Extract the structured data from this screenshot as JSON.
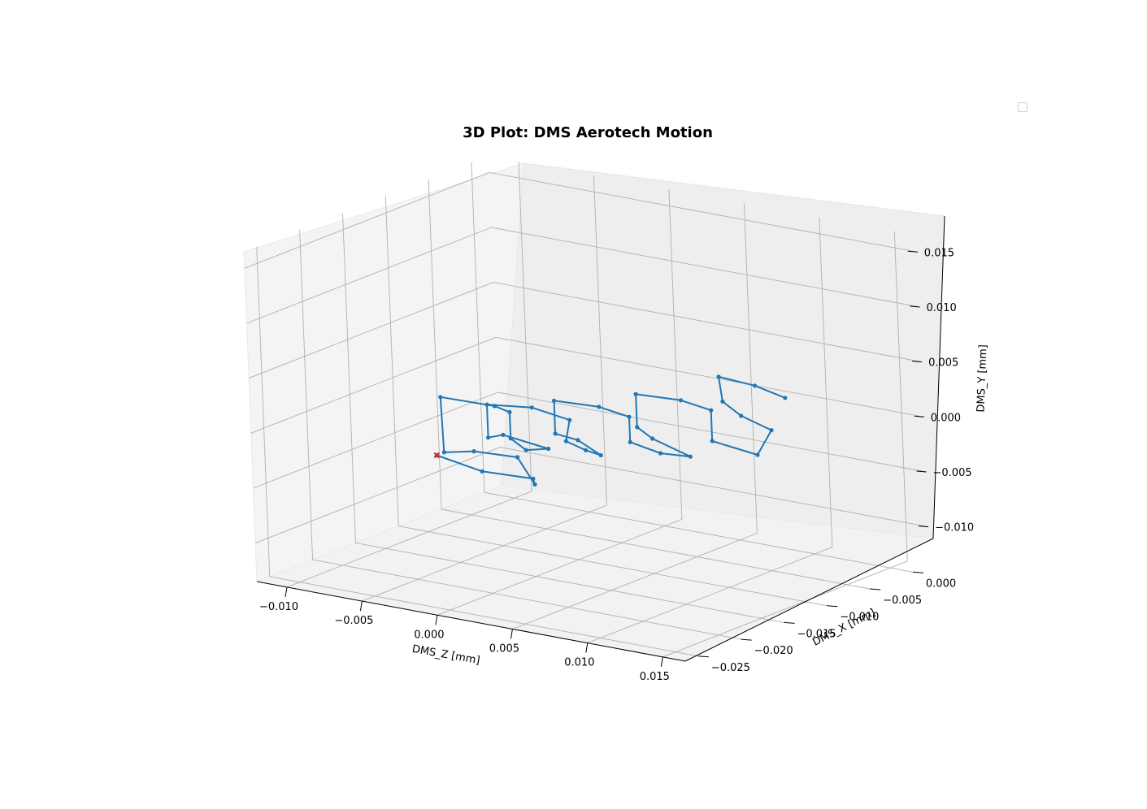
{
  "chart_data": {
    "type": "line3d",
    "title": "3D Plot: DMS Aerotech Motion",
    "axes": {
      "x": {
        "label": "DMS_Z [mm]",
        "ticks": [
          "−0.010",
          "−0.005",
          "0.000",
          "0.005",
          "0.010",
          "0.015"
        ],
        "tick_values": [
          -0.01,
          -0.005,
          0.0,
          0.005,
          0.01,
          0.015
        ]
      },
      "y": {
        "label": "DMS_X [mm]",
        "ticks": [
          "−0.025",
          "−0.020",
          "−0.015",
          "−0.010",
          "−0.005",
          "0.000"
        ],
        "tick_values": [
          -0.025,
          -0.02,
          -0.015,
          -0.01,
          -0.005,
          0.0
        ]
      },
      "z": {
        "label": "DMS_Y [mm]",
        "ticks": [
          "−0.010",
          "−0.005",
          "0.000",
          "0.005",
          "0.010",
          "0.015"
        ],
        "tick_values": [
          -0.01,
          -0.005,
          0.0,
          0.005,
          0.01,
          0.015
        ]
      }
    },
    "grid": true,
    "legend": {
      "placement": "upper right",
      "entries": []
    },
    "series": [
      {
        "color": "#1f77b4",
        "note_points": "approximate path in data units [z, x, y]",
        "points": [
          [
            -0.0075,
            -0.013,
            -0.005
          ],
          [
            -0.0045,
            -0.013,
            -0.0057
          ],
          [
            -0.0011,
            -0.013,
            -0.0055
          ],
          [
            -0.001,
            -0.013,
            -0.006
          ],
          [
            -0.0021,
            -0.013,
            -0.0038
          ],
          [
            -0.005,
            -0.013,
            -0.004
          ],
          [
            -0.007,
            -0.013,
            -0.0046
          ],
          [
            -0.0071,
            -0.013,
            0.0004
          ],
          [
            -0.0035,
            -0.013,
            0.0005
          ],
          [
            -0.0025,
            -0.013,
            0.0002
          ],
          [
            -0.0025,
            -0.013,
            -0.0022
          ],
          [
            -0.0015,
            -0.013,
            -0.003
          ],
          [
            0.0,
            -0.013,
            -0.0025
          ],
          [
            -0.003,
            -0.013,
            -0.002
          ],
          [
            -0.004,
            -0.013,
            -0.0025
          ],
          [
            -0.004,
            -0.013,
            0.0005
          ],
          [
            -0.001,
            -0.013,
            0.001
          ],
          [
            0.0015,
            -0.013,
            0.0005
          ],
          [
            0.0012,
            -0.013,
            -0.0015
          ],
          [
            0.0025,
            -0.013,
            -0.002
          ],
          [
            0.0035,
            -0.013,
            -0.0022
          ],
          [
            0.002,
            -0.013,
            -0.0012
          ],
          [
            0.0005,
            -0.013,
            -0.001
          ],
          [
            0.0005,
            -0.013,
            0.002
          ],
          [
            0.0035,
            -0.013,
            0.0022
          ],
          [
            0.0055,
            -0.013,
            0.0018
          ],
          [
            0.0055,
            -0.013,
            -0.0005
          ],
          [
            0.0075,
            -0.013,
            -0.001
          ],
          [
            0.0095,
            -0.013,
            -0.0008
          ],
          [
            0.007,
            -0.013,
            0.0002
          ],
          [
            0.006,
            -0.013,
            0.001
          ],
          [
            0.006,
            -0.013,
            0.004
          ],
          [
            0.009,
            -0.013,
            0.0042
          ],
          [
            0.011,
            -0.013,
            0.0038
          ],
          [
            0.011,
            -0.013,
            0.001
          ],
          [
            0.014,
            -0.013,
            0.0005
          ],
          [
            0.015,
            -0.013,
            0.003
          ],
          [
            0.013,
            -0.013,
            0.0038
          ],
          [
            0.0118,
            -0.013,
            0.0048
          ],
          [
            0.0116,
            -0.013,
            0.007
          ],
          [
            0.014,
            -0.013,
            0.0068
          ],
          [
            0.016,
            -0.013,
            0.0062
          ]
        ]
      }
    ],
    "markers": [
      {
        "color": "#d62728",
        "symbol": "x",
        "point": [
          -0.0075,
          -0.013,
          -0.005
        ]
      }
    ]
  }
}
